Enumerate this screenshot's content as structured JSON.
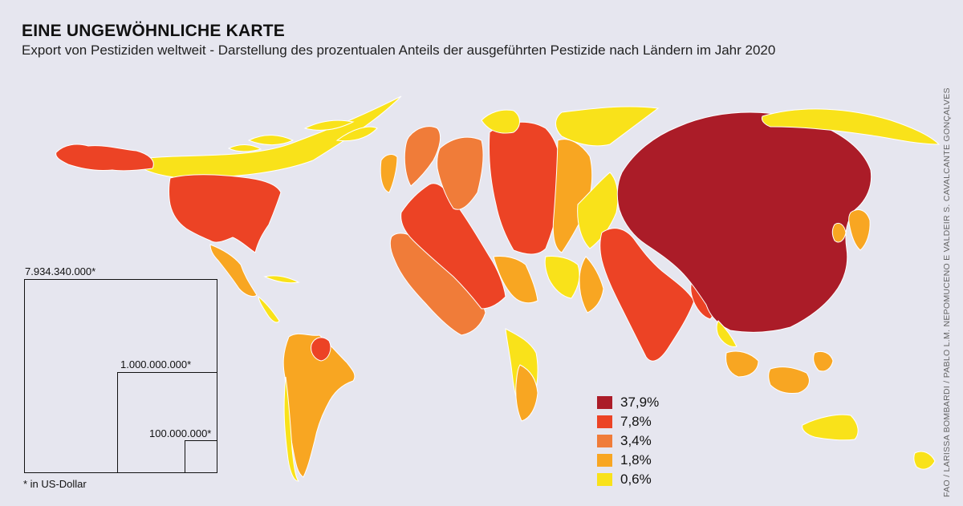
{
  "title": "EINE UNGEWÖHNLICHE KARTE",
  "subtitle": "Export von Pestiziden weltweit - Darstellung des prozentualen Anteils der ausgeführten Pestizide nach Ländern im Jahr 2020",
  "legend": [
    {
      "label": "37,9%",
      "color": "#ab1c28"
    },
    {
      "label": "7,8%",
      "color": "#ec4325"
    },
    {
      "label": "3,4%",
      "color": "#f07c39"
    },
    {
      "label": "1,8%",
      "color": "#f8a622"
    },
    {
      "label": "0,6%",
      "color": "#f9e21a"
    }
  ],
  "scale": {
    "large": "7.934.340.000*",
    "medium": "1.000.000.000*",
    "small": "100.000.000*",
    "footnote": "* in US-Dollar"
  },
  "credit": "FAO / LARISSA BOMBARDI / PABLO L.M. NEPOMUCENO E VALDEIR S. CAVALCANTE GONÇALVES",
  "regions": [
    {
      "name": "china",
      "share": "37,9%"
    },
    {
      "name": "usa",
      "share": "7,8%"
    },
    {
      "name": "india",
      "share": "7,8%"
    },
    {
      "name": "germany",
      "share": "7,8%"
    },
    {
      "name": "france",
      "share": "3,4%"
    }
  ]
}
